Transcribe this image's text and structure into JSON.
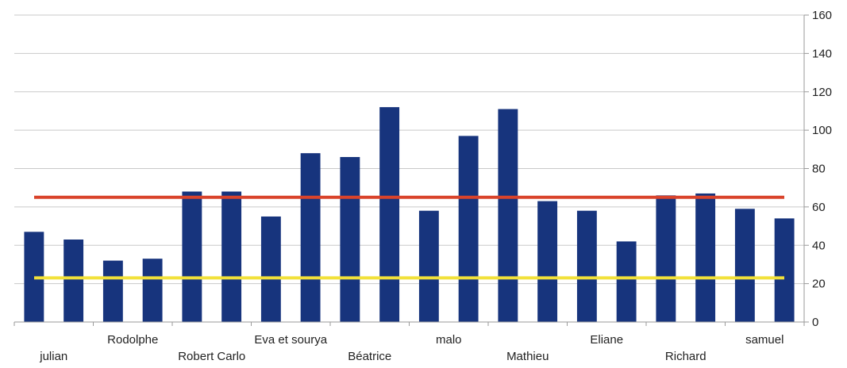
{
  "chart_data": {
    "type": "bar",
    "categories": [
      "julian",
      "",
      "Rodolphe",
      "",
      "Robert Carlo",
      "",
      "Eva et sourya",
      "",
      "Béatrice",
      "",
      "malo",
      "",
      "Mathieu",
      "",
      "Eliane",
      "",
      "Richard",
      "",
      "samuel",
      ""
    ],
    "values": [
      47,
      43,
      32,
      33,
      68,
      68,
      55,
      88,
      86,
      112,
      58,
      97,
      111,
      63,
      58,
      42,
      66,
      67,
      59,
      54
    ],
    "series": [
      {
        "values": [
          47,
          43,
          32,
          33,
          68,
          68,
          55,
          88,
          86,
          112,
          58,
          97,
          111,
          63,
          58,
          42,
          66,
          67,
          59,
          54
        ]
      }
    ],
    "reference_lines": [
      {
        "value": 65,
        "color": "#d9432b"
      },
      {
        "value": 23,
        "color": "#f2e13a"
      }
    ],
    "yticks_right": [
      0,
      20,
      40,
      60,
      80,
      100,
      120,
      140,
      160
    ],
    "ylim": [
      0,
      160
    ],
    "title": "",
    "xlabel": "",
    "ylabel": "",
    "grid": true,
    "legend": "none",
    "colors": {
      "bar": "#17347d",
      "grid": "#c9c9c9",
      "axis": "#9a9a9a",
      "text": "#222222"
    }
  }
}
